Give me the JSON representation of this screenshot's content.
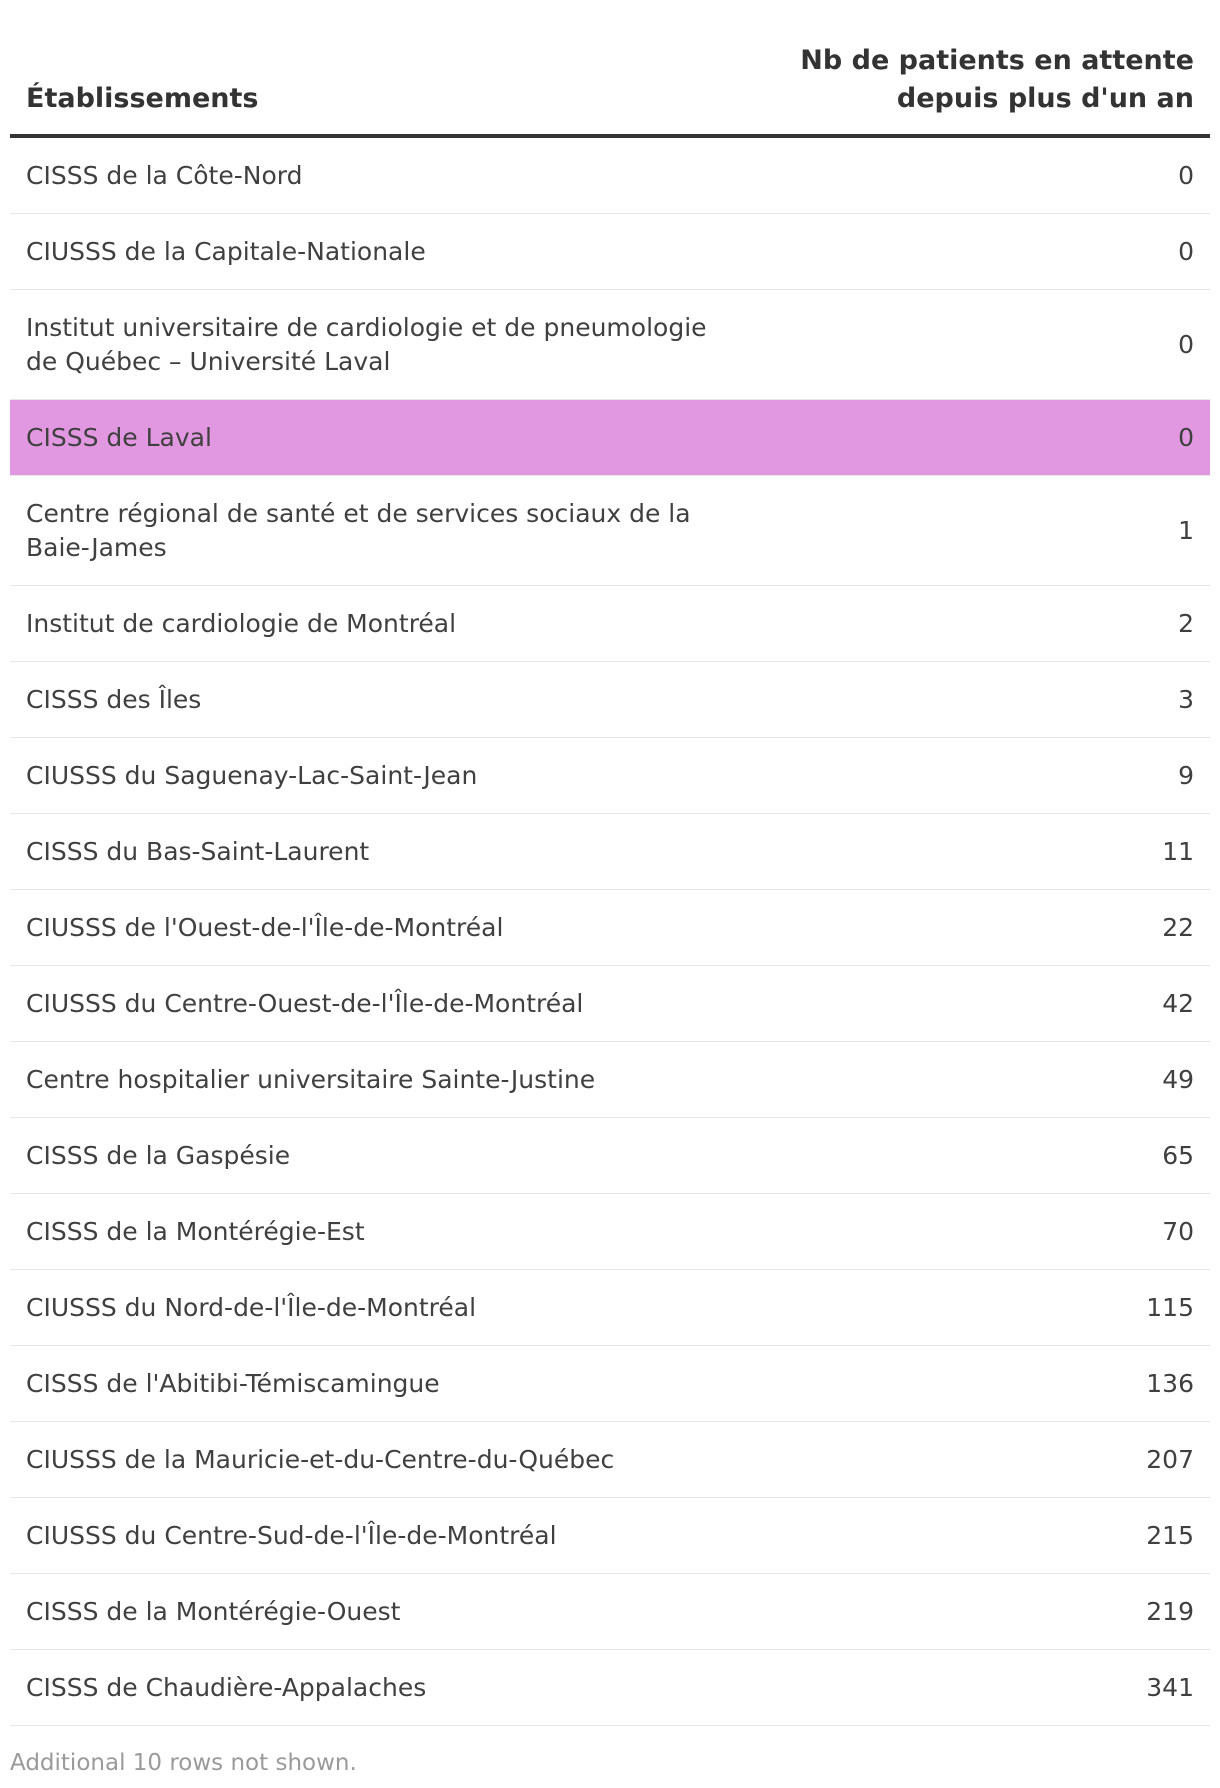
{
  "table": {
    "header": {
      "name": "Établissements",
      "value_line1": "Nb de patients en attente",
      "value_line2": "depuis plus d'un an"
    },
    "rows": [
      {
        "name": "CISSS de la Côte-Nord",
        "value": "0"
      },
      {
        "name": "CIUSSS de la Capitale-Nationale",
        "value": "0"
      },
      {
        "name": "Institut universitaire de cardiologie et de pneumologie de Québec – Université Laval",
        "value": "0"
      },
      {
        "name": "CISSS de Laval",
        "value": "0"
      },
      {
        "name": "Centre régional de santé et de services sociaux de la Baie-James",
        "value": "1"
      },
      {
        "name": "Institut de cardiologie de Montréal",
        "value": "2"
      },
      {
        "name": "CISSS des Îles",
        "value": "3"
      },
      {
        "name": "CIUSSS du Saguenay-Lac-Saint-Jean",
        "value": "9"
      },
      {
        "name": "CISSS du Bas-Saint-Laurent",
        "value": "11"
      },
      {
        "name": "CIUSSS de l'Ouest-de-l'Île-de-Montréal",
        "value": "22"
      },
      {
        "name": "CIUSSS du Centre-Ouest-de-l'Île-de-Montréal",
        "value": "42"
      },
      {
        "name": "Centre hospitalier universitaire Sainte-Justine",
        "value": "49"
      },
      {
        "name": "CISSS de la Gaspésie",
        "value": "65"
      },
      {
        "name": "CISSS de la Montérégie-Est",
        "value": "70"
      },
      {
        "name": "CIUSSS du Nord-de-l'Île-de-Montréal",
        "value": "115"
      },
      {
        "name": "CISSS de l'Abitibi-Témiscamingue",
        "value": "136"
      },
      {
        "name": "CIUSSS de la Mauricie-et-du-Centre-du-Québec",
        "value": "207"
      },
      {
        "name": "CIUSSS du Centre-Sud-de-l'Île-de-Montréal",
        "value": "215"
      },
      {
        "name": "CISSS de la Montérégie-Ouest",
        "value": "219"
      },
      {
        "name": "CISSS de Chaudière-Appalaches",
        "value": "341"
      }
    ],
    "footnote": "Additional 10 rows not shown."
  },
  "colors": {
    "highlight": "#e298e0",
    "text": "#333333",
    "divider": "#e6e6e6",
    "footnote": "#9a9a9a"
  }
}
